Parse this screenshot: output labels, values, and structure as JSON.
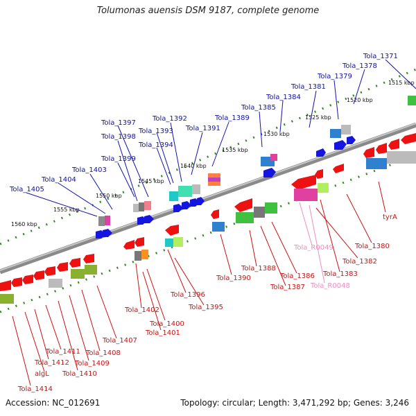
{
  "title": "Tolumonas auensis DSM 9187, complete genome",
  "accession": "Accession: NC_012691",
  "summary": "Topology: circular; Length: 3,471,292 bp; Genes: 3,246",
  "colors": {
    "backbone": "#8a8a8a",
    "ruler": "#2e8b22",
    "forward_label": "#1010b0",
    "reverse_label": "#cc1010",
    "rna_label": "#f08cc0"
  },
  "kbp_ticks": [
    "1515 kbp",
    "1520 kbp",
    "1525 kbp",
    "1530 kbp",
    "1535 kbp",
    "1540 kbp",
    "1545 kbp",
    "1550 kbp",
    "1555 kbp",
    "1560 kbp"
  ],
  "upper_labels": [
    "Tola_1371",
    "Tola_1378",
    "Tola_1379",
    "Tola_1381",
    "Tola_1384",
    "Tola_1385",
    "Tola_1389",
    "Tola_1391",
    "Tola_1392",
    "Tola_1393",
    "Tola_1394",
    "Tola_1397",
    "Tola_1398",
    "Tola_1399",
    "Tola_1403",
    "Tola_1404",
    "Tola_1405"
  ],
  "lower_labels": [
    "tyrA",
    "Tola_1380",
    "Tola_R0049",
    "Tola_1382",
    "Tola_1383",
    "Tola_R0048",
    "Tola_1386",
    "Tola_1387",
    "Tola_1388",
    "Tola_1390",
    "Tola_1395",
    "Tola_1396",
    "Tola_1400",
    "Tola_1401",
    "Tola_1402",
    "Tola_1407",
    "Tola_1408",
    "Tola_1409",
    "Tola_1410",
    "Tola_1411",
    "Tola_1412",
    "algL",
    "Tola_1414"
  ]
}
